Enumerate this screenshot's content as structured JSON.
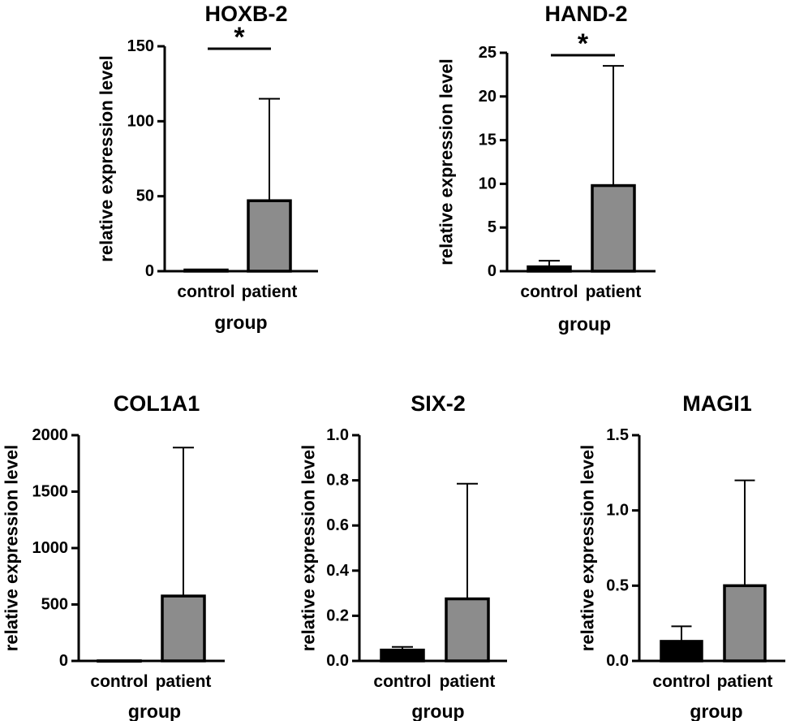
{
  "figure": {
    "background": "#ffffff"
  },
  "chart_data": [
    {
      "id": "hoxb2",
      "type": "bar",
      "title": "HOXB-2",
      "xlabel": "group",
      "ylabel": "relative expression level",
      "categories": [
        "control",
        "patient"
      ],
      "values": [
        0.8,
        47
      ],
      "error_upper": [
        1.0,
        115
      ],
      "ylim": [
        0,
        150
      ],
      "yticks": [
        0,
        50,
        100,
        150
      ],
      "ytick_labels": [
        "0",
        "50",
        "100",
        "150"
      ],
      "bar_colors": [
        "#000000",
        "#8c8c8c"
      ],
      "significance": {
        "label": "*",
        "between": [
          "control",
          "patient"
        ]
      }
    },
    {
      "id": "hand2",
      "type": "bar",
      "title": "HAND-2",
      "xlabel": "group",
      "ylabel": "relative expression level",
      "categories": [
        "control",
        "patient"
      ],
      "values": [
        0.5,
        9.8
      ],
      "error_upper": [
        1.2,
        23.5
      ],
      "ylim": [
        0,
        25
      ],
      "yticks": [
        0,
        5,
        10,
        15,
        20,
        25
      ],
      "ytick_labels": [
        "0",
        "5",
        "10",
        "15",
        "20",
        "25"
      ],
      "bar_colors": [
        "#000000",
        "#8c8c8c"
      ],
      "significance": {
        "label": "*",
        "between": [
          "control",
          "patient"
        ]
      }
    },
    {
      "id": "col1a1",
      "type": "bar",
      "title": "COL1A1",
      "xlabel": "group",
      "ylabel": "relative expression level",
      "categories": [
        "control",
        "patient"
      ],
      "values": [
        1,
        575
      ],
      "error_upper": [
        2,
        1890
      ],
      "ylim": [
        0,
        2000
      ],
      "yticks": [
        0,
        500,
        1000,
        1500,
        2000
      ],
      "ytick_labels": [
        "0",
        "500",
        "1000",
        "1500",
        "2000"
      ],
      "bar_colors": [
        "#000000",
        "#8c8c8c"
      ],
      "significance": null
    },
    {
      "id": "six2",
      "type": "bar",
      "title": "SIX-2",
      "xlabel": "group",
      "ylabel": "relative expression level",
      "categories": [
        "control",
        "patient"
      ],
      "values": [
        0.048,
        0.275
      ],
      "error_upper": [
        0.062,
        0.785
      ],
      "ylim": [
        0,
        1.0
      ],
      "yticks": [
        0,
        0.2,
        0.4,
        0.6,
        0.8,
        1.0
      ],
      "ytick_labels": [
        "0.0",
        "0.2",
        "0.4",
        "0.6",
        "0.8",
        "1.0"
      ],
      "bar_colors": [
        "#000000",
        "#8c8c8c"
      ],
      "significance": null
    },
    {
      "id": "magi1",
      "type": "bar",
      "title": "MAGI1",
      "xlabel": "group",
      "ylabel": "relative expression level",
      "categories": [
        "control",
        "patient"
      ],
      "values": [
        0.13,
        0.5
      ],
      "error_upper": [
        0.23,
        1.2
      ],
      "ylim": [
        0,
        1.5
      ],
      "yticks": [
        0,
        0.5,
        1.0,
        1.5
      ],
      "ytick_labels": [
        "0.0",
        "0.5",
        "1.0",
        "1.5"
      ],
      "bar_colors": [
        "#000000",
        "#8c8c8c"
      ],
      "significance": null
    }
  ]
}
